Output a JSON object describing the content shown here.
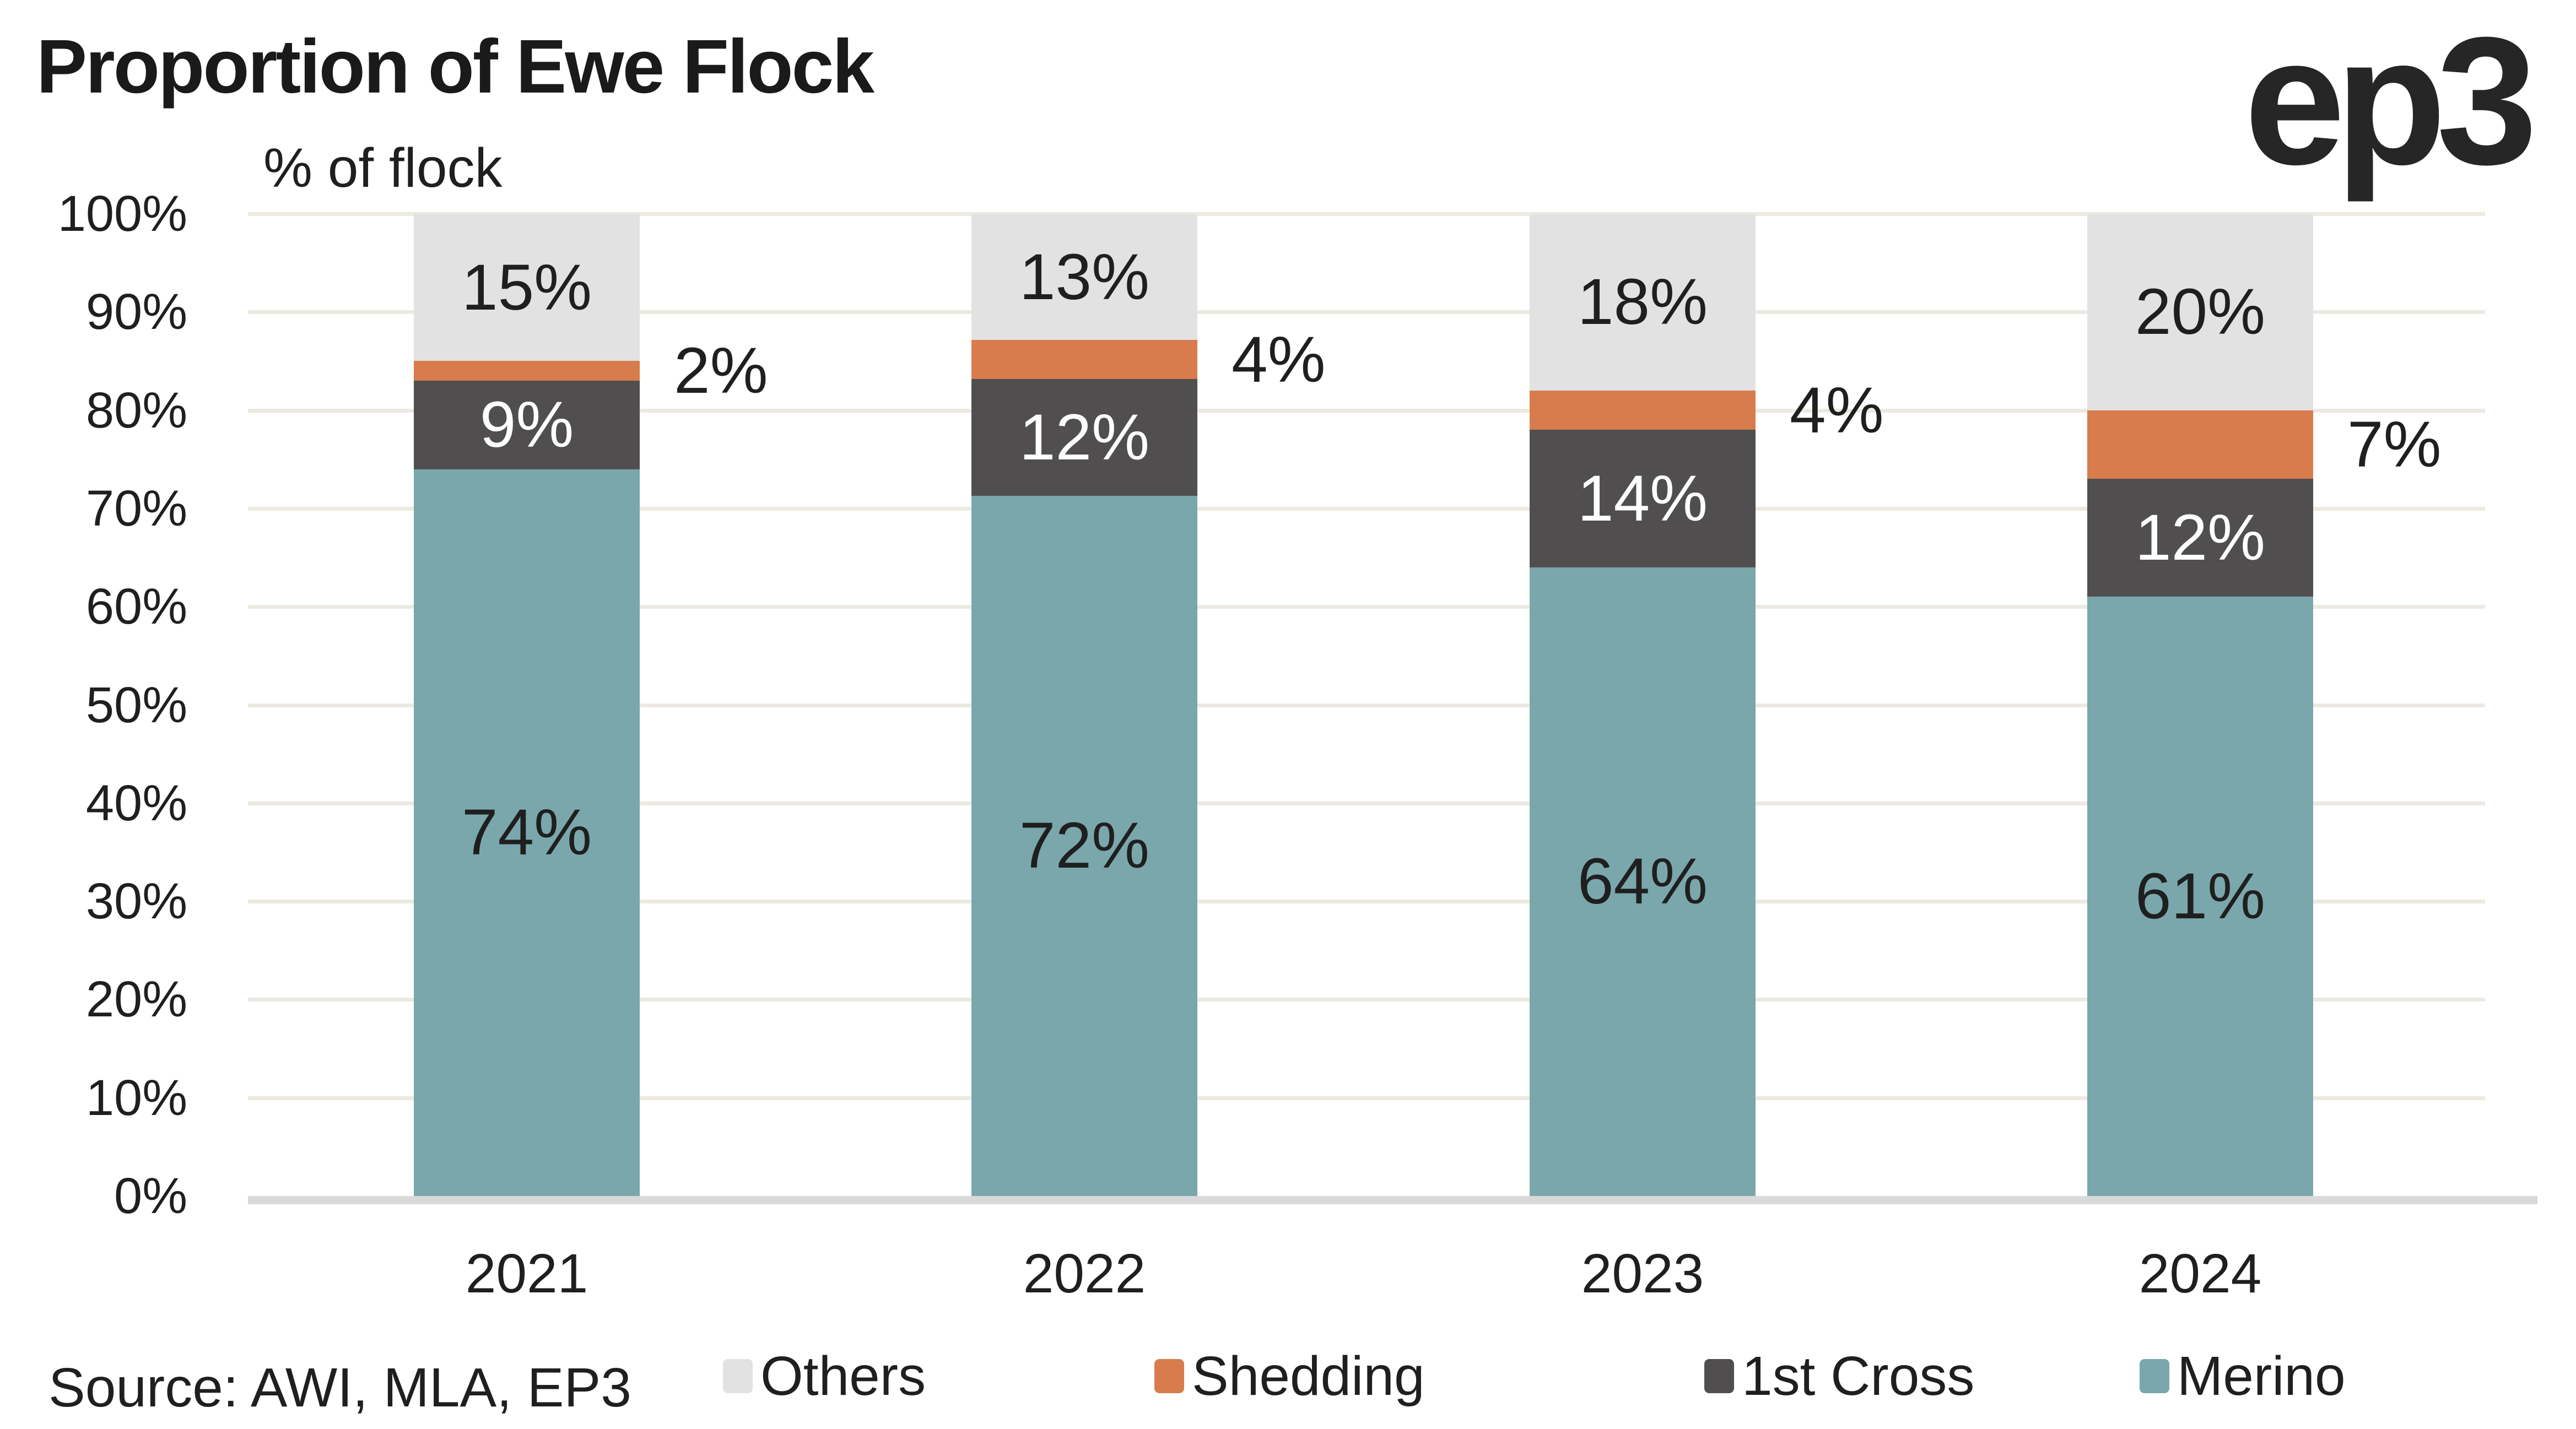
{
  "header": {
    "title": "Proportion of Ewe Flock",
    "logo": "ep3"
  },
  "footer": {
    "source": "Source: AWI, MLA, EP3"
  },
  "colors": {
    "background": "#FFFFFF",
    "title_text": "#1A1A1A",
    "text": "#1F1F1F",
    "gridline": "#ECEAE0",
    "axis_line": "#D9D9D9",
    "merino": "#7AA7AB",
    "first_cross": "#514E4F",
    "shedding": "#D87C4D",
    "others": "#E3E2E2"
  },
  "chart_data": {
    "type": "bar",
    "stacked": true,
    "title": "Proportion of Ewe Flock",
    "ylabel": "% of flock",
    "ylim": [
      0,
      100
    ],
    "grid": "horizontal",
    "yticks": [
      "0%",
      "10%",
      "20%",
      "30%",
      "40%",
      "50%",
      "60%",
      "70%",
      "80%",
      "90%",
      "100%"
    ],
    "categories": [
      "2021",
      "2022",
      "2023",
      "2024"
    ],
    "series": [
      {
        "name": "Merino",
        "color": "#7AA7AB",
        "label_color": "#1F1F1F",
        "label_placement": "inside",
        "values": [
          74,
          72,
          64,
          61
        ]
      },
      {
        "name": "1st Cross",
        "color": "#514E4F",
        "label_color": "#FFFFFF",
        "label_placement": "inside",
        "values": [
          9,
          12,
          14,
          12
        ]
      },
      {
        "name": "Shedding",
        "color": "#D87C4D",
        "label_color": "#1F1F1F",
        "label_placement": "outside-right",
        "values": [
          2,
          4,
          4,
          7
        ]
      },
      {
        "name": "Others",
        "color": "#E3E2E2",
        "label_color": "#1F1F1F",
        "label_placement": "inside",
        "values": [
          15,
          13,
          18,
          20
        ]
      }
    ],
    "value_format": "{v}%",
    "legend": [
      "Others",
      "Shedding",
      "1st Cross",
      "Merino"
    ],
    "legend_position": "bottom"
  }
}
